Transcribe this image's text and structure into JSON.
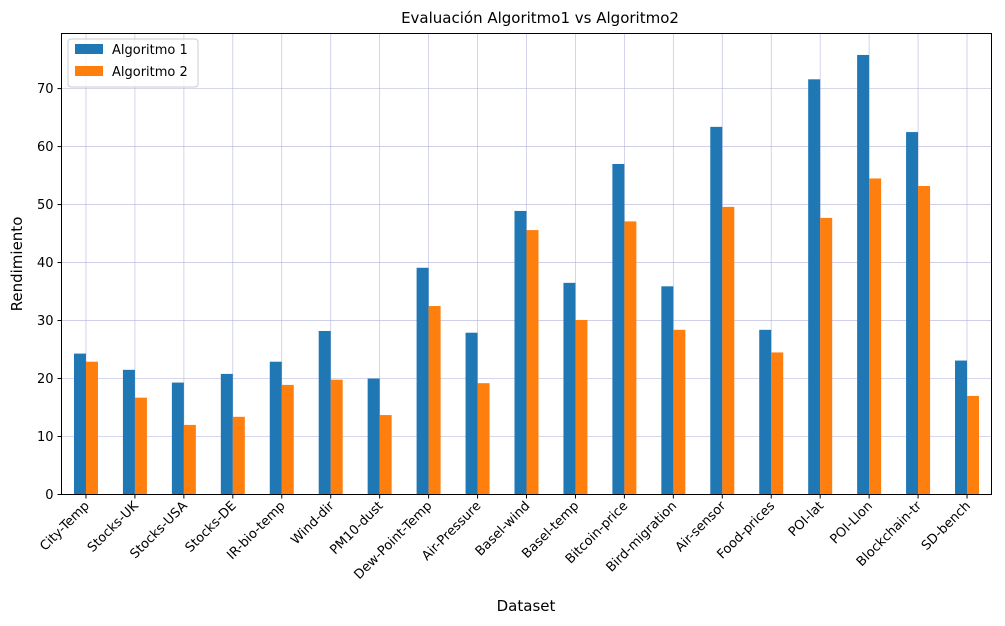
{
  "chart_data": {
    "type": "bar",
    "title": "Evaluación Algoritmo1 vs Algoritmo2",
    "xlabel": "Dataset",
    "ylabel": "Rendimiento",
    "ylim": [
      0,
      79.5
    ],
    "yticks": [
      0,
      10,
      20,
      30,
      40,
      50,
      60,
      70
    ],
    "grid": true,
    "legend_position": "top-left",
    "categories": [
      "City-Temp",
      "Stocks-UK",
      "Stocks-USA",
      "Stocks-DE",
      "IR-bio-temp",
      "Wind-dir",
      "PM10-dust",
      "Dew-Point-Temp",
      "Air-Pressure",
      "Basel-wind",
      "Basel-temp",
      "Bitcoin-price",
      "Bird-migration",
      "Air-sensor",
      "Food-prices",
      "POI-lat",
      "POI-Llon",
      "Blockchain-tr",
      "SD-bench"
    ],
    "series": [
      {
        "name": "Algoritmo 1",
        "color": "#1f77b4",
        "values": [
          24.3,
          21.5,
          19.3,
          20.8,
          22.9,
          28.2,
          20.0,
          39.1,
          27.9,
          48.9,
          36.5,
          57.0,
          35.9,
          63.4,
          28.4,
          71.6,
          75.8,
          62.5,
          23.1
        ]
      },
      {
        "name": "Algoritmo 2",
        "color": "#ff7f0e",
        "values": [
          22.9,
          16.7,
          12.0,
          13.4,
          18.9,
          19.8,
          13.7,
          32.5,
          19.2,
          45.6,
          30.1,
          47.1,
          28.4,
          49.6,
          24.5,
          47.7,
          54.5,
          53.2,
          17.0
        ]
      }
    ]
  }
}
